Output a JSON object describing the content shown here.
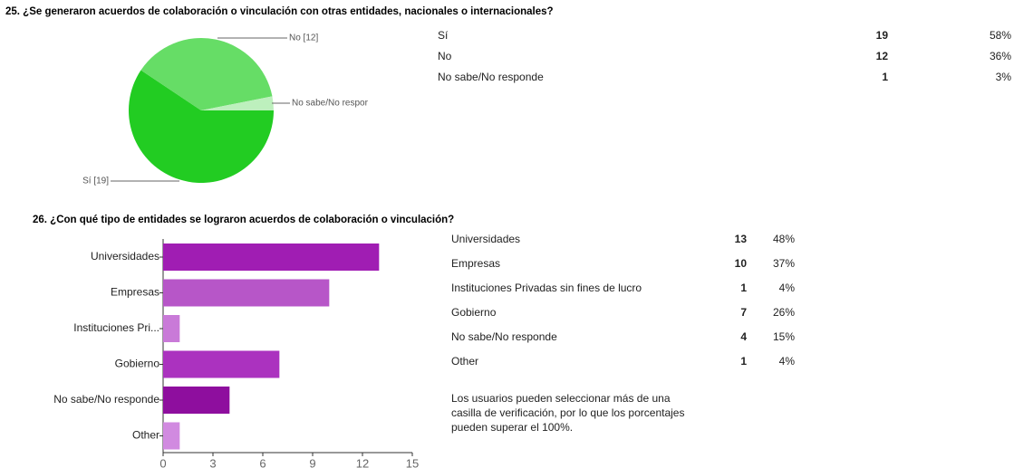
{
  "chart_data": [
    {
      "type": "pie",
      "title": "25. ¿Se generaron acuerdos de colaboración o vinculación con otras entidades, nacionales o internacionales?",
      "categories": [
        "Sí",
        "No",
        "No sabe/No responde"
      ],
      "values": [
        19,
        12,
        1
      ],
      "slice_labels": [
        "Sí [19]",
        "No [12]",
        "No sabe/No respor"
      ],
      "colors": [
        "#22cc22",
        "#66dd66",
        "#bdf0bd"
      ],
      "table": [
        [
          "Sí",
          "19",
          "58%"
        ],
        [
          "No",
          "12",
          "36%"
        ],
        [
          "No sabe/No responde",
          "1",
          "3%"
        ]
      ]
    },
    {
      "type": "bar",
      "title": "26. ¿Con qué tipo de entidades se lograron acuerdos de colaboración o vinculación?",
      "categories": [
        "Universidades",
        "Empresas",
        "Instituciones Pri...",
        "Gobierno",
        "No sabe/No responde",
        "Other"
      ],
      "values": [
        13,
        10,
        1,
        7,
        4,
        1
      ],
      "colors": [
        "#a01db3",
        "#b756c8",
        "#c97ad8",
        "#ab32bf",
        "#8e0e9e",
        "#d18ae0"
      ],
      "xlim": [
        0,
        15
      ],
      "xticks": [
        0,
        3,
        6,
        9,
        12,
        15
      ],
      "table": [
        [
          "Universidades",
          "13",
          "48%"
        ],
        [
          "Empresas",
          "10",
          "37%"
        ],
        [
          "Instituciones Privadas sin fines de lucro",
          "1",
          "4%"
        ],
        [
          "Gobierno",
          "7",
          "26%"
        ],
        [
          "No sabe/No responde",
          "4",
          "15%"
        ],
        [
          "Other",
          "1",
          "4%"
        ]
      ],
      "note": [
        "Los usuarios pueden seleccionar más de una",
        "casilla de verificación, por lo que los porcentajes",
        "pueden superar el 100%."
      ]
    }
  ]
}
